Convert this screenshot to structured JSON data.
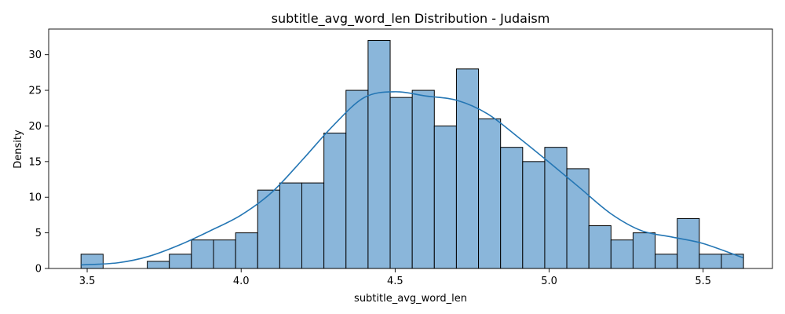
{
  "chart_data": {
    "type": "histogram",
    "title": "subtitle_avg_word_len Distribution - Judaism",
    "xlabel": "subtitle_avg_word_len",
    "ylabel": "Density",
    "xlim": [
      3.375,
      5.725
    ],
    "ylim": [
      0,
      33.6
    ],
    "xticks": [
      3.5,
      4.0,
      4.5,
      5.0,
      5.5
    ],
    "xtick_labels": [
      "3.5",
      "4.0",
      "4.5",
      "5.0",
      "5.5"
    ],
    "yticks": [
      0,
      5,
      10,
      15,
      20,
      25,
      30
    ],
    "ytick_labels": [
      "0",
      "5",
      "10",
      "15",
      "20",
      "25",
      "30"
    ],
    "bin_start": 3.48,
    "bin_width": 0.0717,
    "counts": [
      2,
      0,
      0,
      1,
      2,
      4,
      4,
      5,
      11,
      12,
      12,
      19,
      25,
      32,
      24,
      25,
      20,
      28,
      21,
      17,
      15,
      17,
      14,
      6,
      4,
      5,
      2,
      7,
      2,
      2
    ],
    "kde": {
      "x": [
        3.48,
        3.6,
        3.7,
        3.8,
        3.9,
        4.0,
        4.1,
        4.2,
        4.3,
        4.4,
        4.5,
        4.6,
        4.7,
        4.8,
        4.9,
        5.0,
        5.1,
        5.2,
        5.3,
        5.4,
        5.5,
        5.63
      ],
      "y": [
        0.5,
        0.8,
        1.7,
        3.3,
        5.3,
        7.5,
        10.7,
        15.3,
        20.1,
        24.0,
        24.8,
        24.2,
        23.6,
        21.7,
        18.4,
        14.9,
        11.3,
        7.7,
        5.3,
        4.4,
        3.5,
        1.5
      ]
    },
    "colors": {
      "bar_fill": "#8ab6da",
      "bar_edge": "#000000",
      "kde_line": "#2476b4"
    },
    "grid": false,
    "legend": "none"
  }
}
